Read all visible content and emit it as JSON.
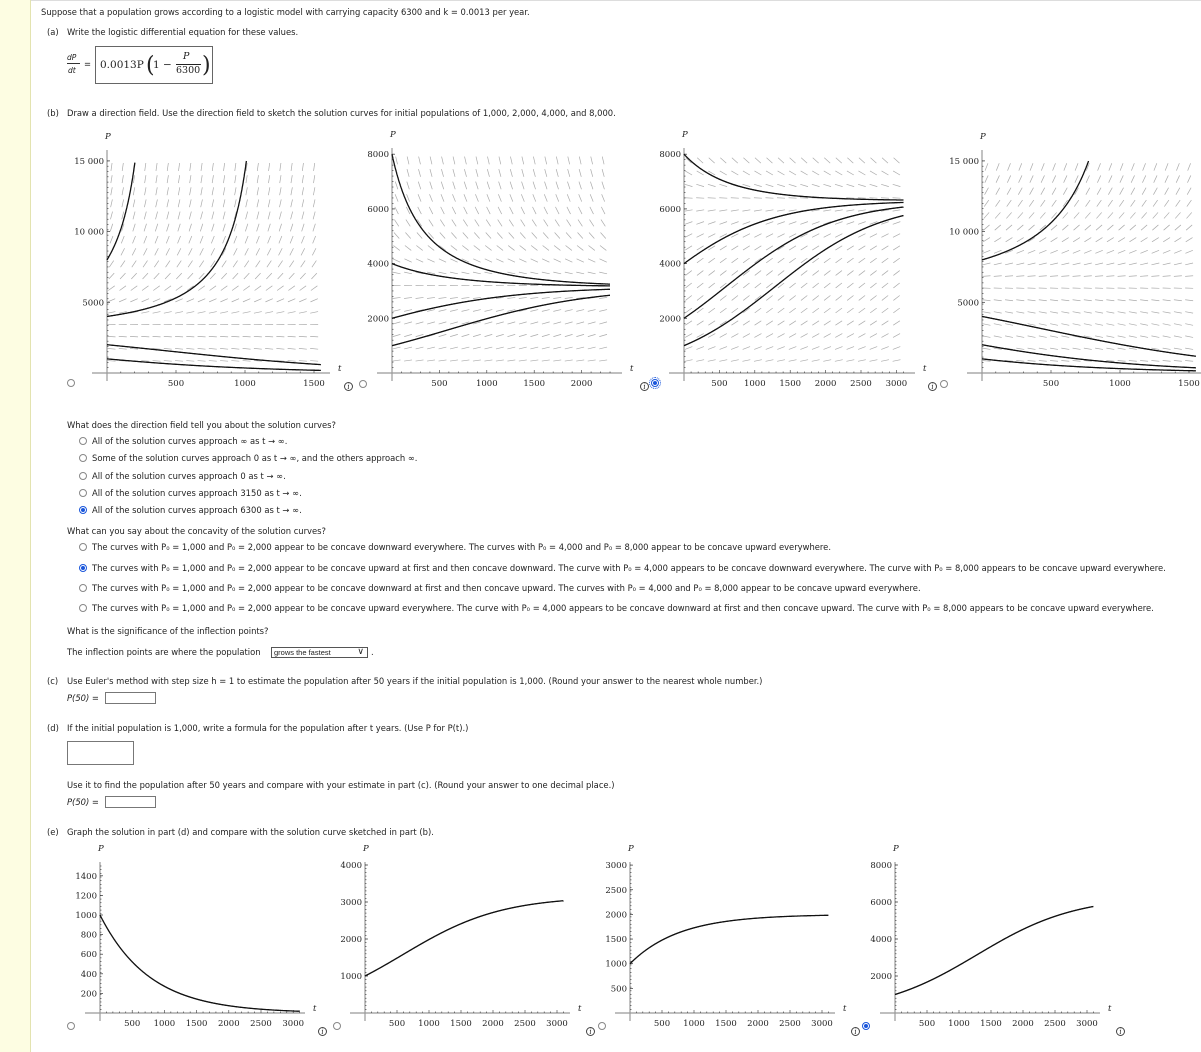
{
  "intro": "Suppose that a population grows according to a logistic model with carrying capacity 6300 and k = 0.0013 per year.",
  "part_a": {
    "label": "(a)",
    "text": "Write the logistic differential equation for these values.",
    "lhs_num": "dP",
    "lhs_den": "dt",
    "equals": "=",
    "answer_coef": "0.0013P",
    "answer_one": "1 −",
    "answer_num": "P",
    "answer_den": "6300"
  },
  "part_b": {
    "label": "(b)",
    "text": "Draw a direction field. Use the direction field to sketch the solution curves for initial populations of 1,000, 2,000, 4,000, and 8,000.",
    "q1": "What does the direction field tell you about the solution curves?",
    "q1_options": [
      {
        "label": "All of the solution curves approach ∞ as t → ∞.",
        "selected": false
      },
      {
        "label": "Some of the solution curves approach 0 as t → ∞, and the others approach ∞.",
        "selected": false
      },
      {
        "label": "All of the solution curves approach 0 as t → ∞.",
        "selected": false
      },
      {
        "label": "All of the solution curves approach 3150 as t → ∞.",
        "selected": false
      },
      {
        "label": "All of the solution curves approach 6300 as t → ∞.",
        "selected": true
      }
    ],
    "q2": "What can you say about the concavity of the solution curves?",
    "q2_options": [
      {
        "label": "The curves with P₀ = 1,000 and P₀ = 2,000 appear to be concave downward everywhere. The curves with P₀ = 4,000 and P₀ = 8,000 appear to be concave upward everywhere.",
        "selected": false
      },
      {
        "label": "The curves with P₀ = 1,000 and P₀ = 2,000 appear to be concave upward at first and then concave downward. The curve with P₀ = 4,000 appears to be concave downward everywhere. The curve with P₀ = 8,000 appears to be concave upward everywhere.",
        "selected": true
      },
      {
        "label": "The curves with P₀ = 1,000 and P₀ = 2,000 appear to be concave downward at first and then concave upward. The curves with P₀ = 4,000 and P₀ = 8,000 appear to be concave upward everywhere.",
        "selected": false
      },
      {
        "label": "The curves with P₀ = 1,000 and P₀ = 2,000 appear to be concave upward everywhere. The curve with P₀ = 4,000 appears to be concave downward at first and then concave upward. The curve with P₀ = 8,000 appears to be concave upward everywhere.",
        "selected": false
      }
    ],
    "q3": "What is the significance of the inflection points?",
    "q3_prefix": "The inflection points are where the population",
    "q3_select": "grows the fastest",
    "q3_suffix": "."
  },
  "part_c": {
    "label": "(c)",
    "text": "Use Euler's method with step size h = 1 to estimate the population after 50 years if the initial population is 1,000. (Round your answer to the nearest whole number.)",
    "answer_label": "P(50) =",
    "answer_value": ""
  },
  "part_d": {
    "label": "(d)",
    "text": "If the initial population is 1,000, write a formula for the population after t years. (Use P for P(t).)",
    "formula_value": "",
    "text2": "Use it to find the population after 50 years and compare with your estimate in part (c). (Round your answer to one decimal place.)",
    "answer_label": "P(50) =",
    "answer_value": ""
  },
  "part_e": {
    "label": "(e)",
    "text": "Graph the solution in part (d) and compare with the solution curve sketched in part (b)."
  },
  "colors": {
    "accent": "#1a56db",
    "field": "#aaaaaa",
    "curve": "#111111",
    "axis": "#999999"
  },
  "chart_data": [
    {
      "group": "b",
      "type": "line",
      "model": "neg-logistic",
      "K": 3150,
      "k": 0.0013,
      "initials": [
        1000,
        2000,
        4000,
        8000
      ],
      "direction_field": true,
      "xlim": [
        0,
        1550
      ],
      "ylim": [
        0,
        15000
      ],
      "xticks": [
        "500",
        "1000",
        "1500"
      ],
      "yticks": [
        "5000",
        "10 000",
        "15 000"
      ],
      "xlabel": "t",
      "ylabel": "P",
      "selected": false
    },
    {
      "group": "b",
      "type": "line",
      "model": "logistic",
      "K": 3150,
      "k": 0.0013,
      "initials": [
        1000,
        2000,
        4000,
        8000
      ],
      "direction_field": true,
      "xlim": [
        0,
        2300
      ],
      "ylim": [
        0,
        8000
      ],
      "xticks": [
        "500",
        "1000",
        "1500",
        "2000"
      ],
      "yticks": [
        "2000",
        "4000",
        "6000",
        "8000"
      ],
      "xlabel": "t",
      "ylabel": "P",
      "selected": false
    },
    {
      "group": "b",
      "type": "line",
      "model": "logistic",
      "K": 6300,
      "k": 0.0013,
      "initials": [
        1000,
        2000,
        4000,
        8000
      ],
      "direction_field": true,
      "xlim": [
        0,
        3100
      ],
      "ylim": [
        0,
        8000
      ],
      "xticks": [
        "500",
        "1000",
        "1500",
        "2000",
        "2500",
        "3000"
      ],
      "yticks": [
        "2000",
        "4000",
        "6000",
        "8000"
      ],
      "xlabel": "t",
      "ylabel": "P",
      "selected": true
    },
    {
      "group": "b",
      "type": "line",
      "model": "neg-logistic",
      "K": 6300,
      "k": 0.0013,
      "initials": [
        1000,
        2000,
        4000,
        8000
      ],
      "direction_field": true,
      "xlim": [
        0,
        1550
      ],
      "ylim": [
        0,
        15000
      ],
      "xticks": [
        "500",
        "1000",
        "1500"
      ],
      "yticks": [
        "5000",
        "10 000",
        "15 000"
      ],
      "xlabel": "t",
      "ylabel": "P",
      "selected": false
    },
    {
      "group": "e",
      "type": "line",
      "model": "exponential",
      "k": -0.0013,
      "initials": [
        1000
      ],
      "direction_field": false,
      "xlim": [
        0,
        3100
      ],
      "ylim": [
        0,
        1500
      ],
      "xticks": [
        "500",
        "1000",
        "1500",
        "2000",
        "2500",
        "3000"
      ],
      "yticks": [
        "200",
        "400",
        "600",
        "800",
        "1000",
        "1200",
        "1400"
      ],
      "xlabel": "t",
      "ylabel": "P",
      "selected": false
    },
    {
      "group": "e",
      "type": "line",
      "model": "logistic",
      "K": 3150,
      "k": 0.0013,
      "initials": [
        1000
      ],
      "direction_field": false,
      "xlim": [
        0,
        3100
      ],
      "ylim": [
        0,
        4000
      ],
      "xticks": [
        "500",
        "1000",
        "1500",
        "2000",
        "2500",
        "3000"
      ],
      "yticks": [
        "1000",
        "2000",
        "3000",
        "4000"
      ],
      "xlabel": "t",
      "ylabel": "P",
      "selected": false
    },
    {
      "group": "e",
      "type": "line",
      "model": "approach",
      "K": 2000,
      "k": 0.0013,
      "initials": [
        1000
      ],
      "direction_field": false,
      "xlim": [
        0,
        3100
      ],
      "ylim": [
        0,
        3000
      ],
      "xticks": [
        "500",
        "1000",
        "1500",
        "2000",
        "2500",
        "3000"
      ],
      "yticks": [
        "500",
        "1000",
        "1500",
        "2000",
        "2500",
        "3000"
      ],
      "xlabel": "t",
      "ylabel": "P",
      "selected": false
    },
    {
      "group": "e",
      "type": "line",
      "model": "logistic",
      "K": 6300,
      "k": 0.0013,
      "initials": [
        1000
      ],
      "direction_field": false,
      "xlim": [
        0,
        3100
      ],
      "ylim": [
        0,
        8000
      ],
      "xticks": [
        "500",
        "1000",
        "1500",
        "2000",
        "2500",
        "3000"
      ],
      "yticks": [
        "2000",
        "4000",
        "6000",
        "8000"
      ],
      "xlabel": "t",
      "ylabel": "P",
      "selected": true
    }
  ]
}
